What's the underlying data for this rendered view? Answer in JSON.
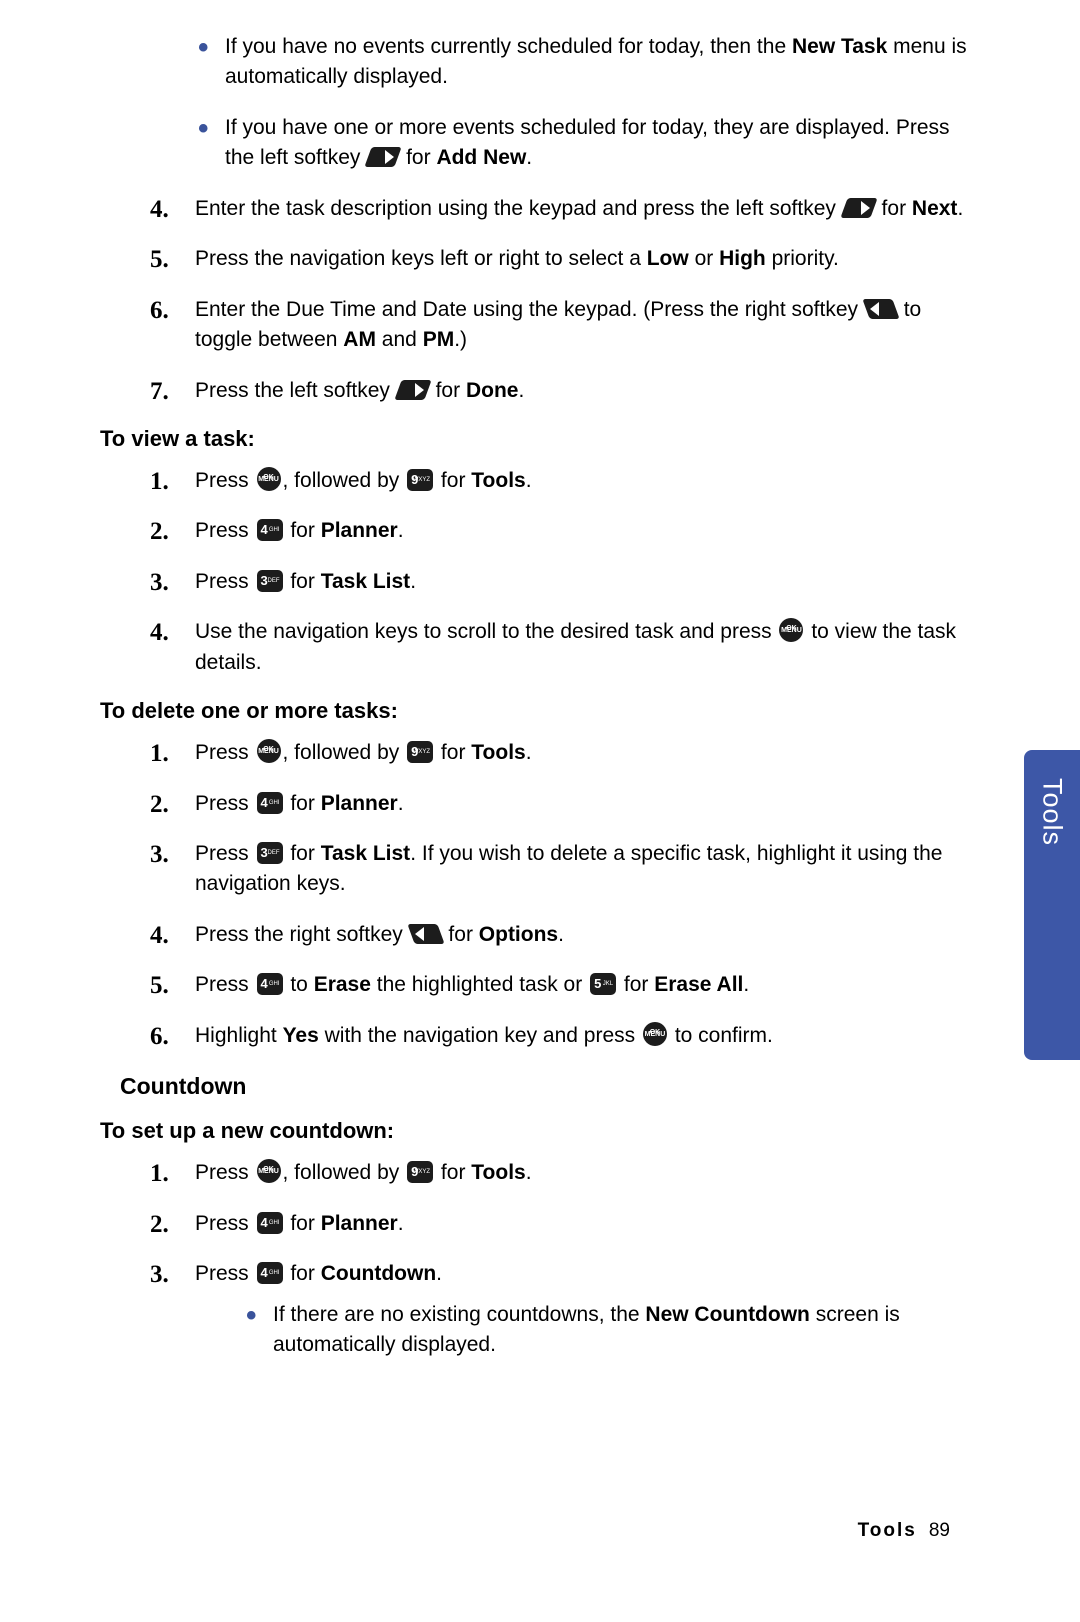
{
  "sideTab": "Tools",
  "footer": {
    "section": "Tools",
    "page": "89"
  },
  "intro_bullets": [
    {
      "pre": "If you have no events currently scheduled for today, then the ",
      "b1": "New Task",
      "post": " menu is automatically displayed."
    },
    {
      "pre": "If you have one or more events scheduled for today, they are displayed. Press the left softkey ",
      "icon": "softkey-left",
      "mid": " for ",
      "b1": "Add New",
      "post": "."
    }
  ],
  "cont_steps": [
    {
      "n": "4.",
      "pre": "Enter the task description using the keypad and press the left softkey ",
      "icon": "softkey-left",
      "mid": " for ",
      "b1": "Next",
      "post": "."
    },
    {
      "n": "5.",
      "pre": "Press the navigation keys left or right to select a ",
      "b1": "Low",
      "mid2": " or ",
      "b2": "High",
      "post": " priority."
    },
    {
      "n": "6.",
      "pre": "Enter the Due Time and Date using the keypad. (Press the right softkey ",
      "icon": "softkey-right",
      "mid": " to toggle between ",
      "b1": "AM",
      "mid2": " and ",
      "b2": "PM",
      "post": ".)"
    },
    {
      "n": "7.",
      "pre": "Press the left softkey ",
      "icon": "softkey-left",
      "mid": " for ",
      "b1": "Done",
      "post": "."
    }
  ],
  "view_head": "To view a task:",
  "view_steps": [
    {
      "n": "1.",
      "segs": [
        {
          "t": "Press "
        },
        {
          "icon": "menu-ok"
        },
        {
          "t": ", followed by "
        },
        {
          "icon": "key9"
        },
        {
          "t": " for "
        },
        {
          "b": "Tools"
        },
        {
          "t": "."
        }
      ]
    },
    {
      "n": "2.",
      "segs": [
        {
          "t": "Press "
        },
        {
          "icon": "key4"
        },
        {
          "t": " for "
        },
        {
          "b": "Planner"
        },
        {
          "t": "."
        }
      ]
    },
    {
      "n": "3.",
      "segs": [
        {
          "t": "Press "
        },
        {
          "icon": "key3"
        },
        {
          "t": " for "
        },
        {
          "b": "Task List"
        },
        {
          "t": "."
        }
      ]
    },
    {
      "n": "4.",
      "segs": [
        {
          "t": "Use the navigation keys to scroll to the desired task and press "
        },
        {
          "icon": "menu-ok"
        },
        {
          "t": " to view the task details."
        }
      ]
    }
  ],
  "del_head": "To delete one or more tasks:",
  "del_steps": [
    {
      "n": "1.",
      "segs": [
        {
          "t": "Press "
        },
        {
          "icon": "menu-ok"
        },
        {
          "t": ", followed by "
        },
        {
          "icon": "key9"
        },
        {
          "t": " for "
        },
        {
          "b": "Tools"
        },
        {
          "t": "."
        }
      ]
    },
    {
      "n": "2.",
      "segs": [
        {
          "t": "Press "
        },
        {
          "icon": "key4"
        },
        {
          "t": " for "
        },
        {
          "b": "Planner"
        },
        {
          "t": "."
        }
      ]
    },
    {
      "n": "3.",
      "segs": [
        {
          "t": "Press "
        },
        {
          "icon": "key3"
        },
        {
          "t": " for "
        },
        {
          "b": "Task List"
        },
        {
          "t": ". If you wish to delete a specific task, highlight it using the navigation keys."
        }
      ]
    },
    {
      "n": "4.",
      "segs": [
        {
          "t": "Press the right softkey "
        },
        {
          "icon": "softkey-right"
        },
        {
          "t": " for "
        },
        {
          "b": "Options"
        },
        {
          "t": "."
        }
      ]
    },
    {
      "n": "5.",
      "segs": [
        {
          "t": "Press "
        },
        {
          "icon": "key4"
        },
        {
          "t": " to "
        },
        {
          "b": "Erase"
        },
        {
          "t": " the highlighted task or "
        },
        {
          "icon": "key5"
        },
        {
          "t": " for "
        },
        {
          "b": "Erase All"
        },
        {
          "t": "."
        }
      ]
    },
    {
      "n": "6.",
      "segs": [
        {
          "t": "Highlight "
        },
        {
          "b": "Yes"
        },
        {
          "t": " with the navigation key and press "
        },
        {
          "icon": "menu-ok"
        },
        {
          "t": " to confirm."
        }
      ]
    }
  ],
  "cd_section": "Countdown",
  "cd_head": "To set up a new countdown:",
  "cd_steps": [
    {
      "n": "1.",
      "segs": [
        {
          "t": "Press "
        },
        {
          "icon": "menu-ok"
        },
        {
          "t": ", followed by "
        },
        {
          "icon": "key9"
        },
        {
          "t": " for "
        },
        {
          "b": "Tools"
        },
        {
          "t": "."
        }
      ]
    },
    {
      "n": "2.",
      "segs": [
        {
          "t": "Press "
        },
        {
          "icon": "key4"
        },
        {
          "t": " for "
        },
        {
          "b": "Planner"
        },
        {
          "t": "."
        }
      ]
    },
    {
      "n": "3.",
      "segs": [
        {
          "t": "Press "
        },
        {
          "icon": "key4"
        },
        {
          "t": " for "
        },
        {
          "b": "Countdown"
        },
        {
          "t": "."
        }
      ]
    }
  ],
  "cd_bullet": {
    "pre": "If there are no existing countdowns, the ",
    "b1": "New Countdown",
    "post": " screen is automatically displayed."
  },
  "keys": {
    "key3": {
      "n": "3",
      "s": "DEF"
    },
    "key4": {
      "n": "4",
      "s": "GHI"
    },
    "key5": {
      "n": "5",
      "s": "JKL"
    },
    "key9": {
      "n": "9",
      "s": "WXYZ"
    }
  }
}
